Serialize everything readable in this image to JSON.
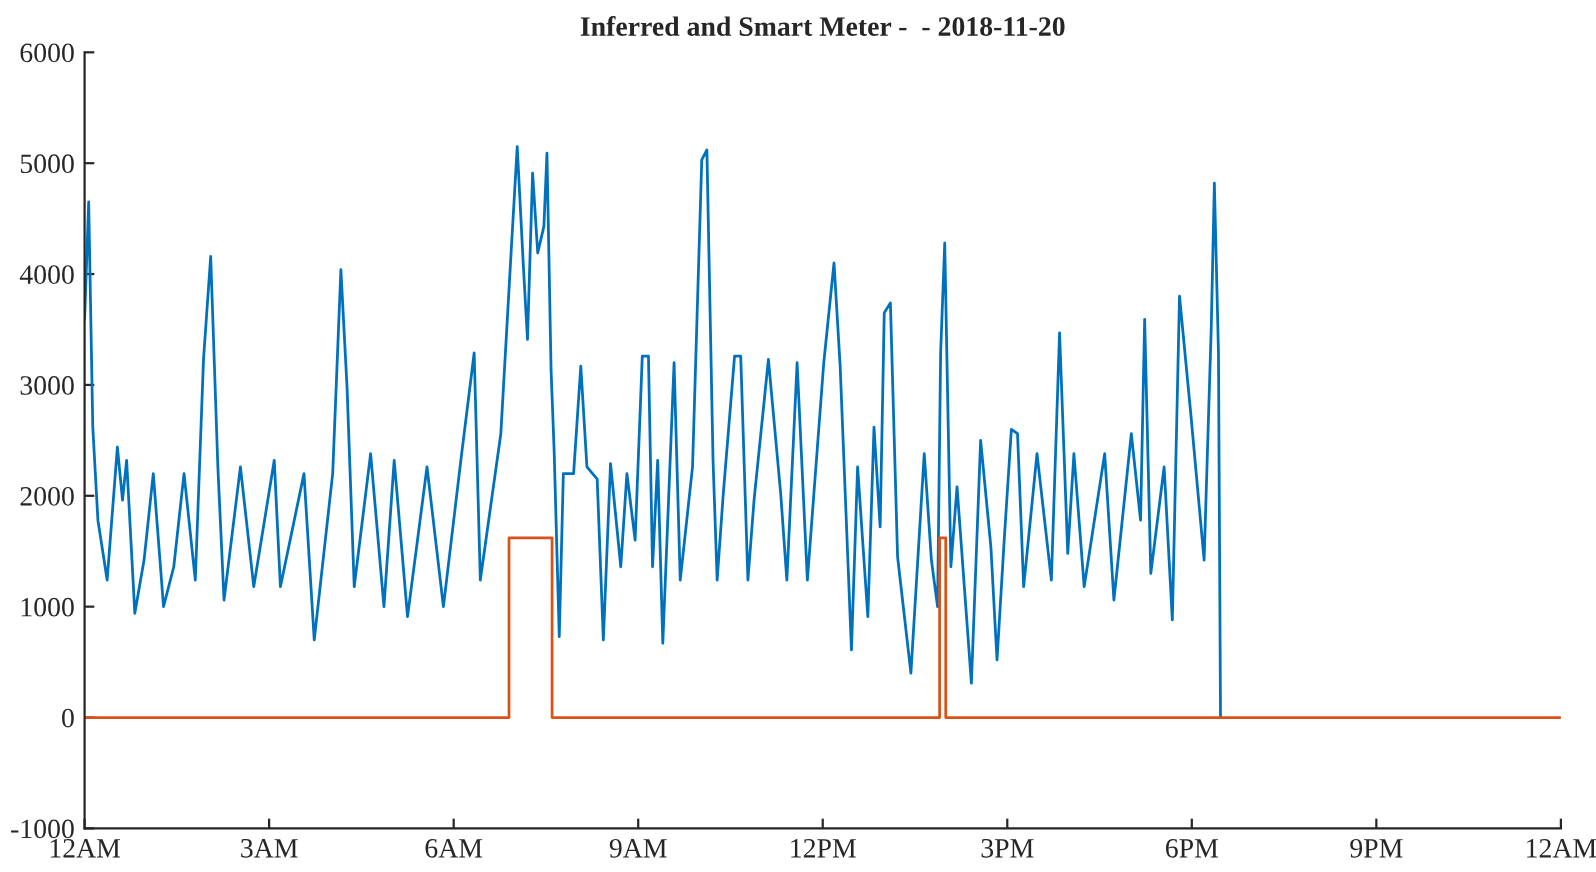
{
  "chart_data": {
    "type": "line",
    "title": "Inferred and Smart Meter -  - 2018-11-20",
    "xlim": [
      "2018-11-20T00:00",
      "2018-11-21T00:00"
    ],
    "xticks": [
      {
        "value": "2018-11-20T00:00",
        "label": "12AM"
      },
      {
        "value": "2018-11-20T03:00",
        "label": "3AM"
      },
      {
        "value": "2018-11-20T06:00",
        "label": "6AM"
      },
      {
        "value": "2018-11-20T09:00",
        "label": "9AM"
      },
      {
        "value": "2018-11-20T12:00",
        "label": "12PM"
      },
      {
        "value": "2018-11-20T15:00",
        "label": "3PM"
      },
      {
        "value": "2018-11-20T18:00",
        "label": "6PM"
      },
      {
        "value": "2018-11-20T21:00",
        "label": "9PM"
      },
      {
        "value": "2018-11-21T00:00",
        "label": "12AM"
      }
    ],
    "ylim": [
      -1000,
      6000
    ],
    "yticks": [
      -1000,
      0,
      1000,
      2000,
      3000,
      4000,
      5000,
      6000
    ],
    "grid": false,
    "series": [
      {
        "color": "#0072bd",
        "x": [
          "2018-11-20T00:00",
          "2018-11-20T00:04",
          "2018-11-20T00:08",
          "2018-11-20T00:13",
          "2018-11-20T00:22",
          "2018-11-20T00:32",
          "2018-11-20T00:37",
          "2018-11-20T00:41",
          "2018-11-20T00:49",
          "2018-11-20T00:58",
          "2018-11-20T01:07",
          "2018-11-20T01:17",
          "2018-11-20T01:27",
          "2018-11-20T01:37",
          "2018-11-20T01:48",
          "2018-11-20T01:56",
          "2018-11-20T02:03",
          "2018-11-20T02:10",
          "2018-11-20T02:16",
          "2018-11-20T02:32",
          "2018-11-20T02:45",
          "2018-11-20T03:05",
          "2018-11-20T03:11",
          "2018-11-20T03:34",
          "2018-11-20T03:44",
          "2018-11-20T04:02",
          "2018-11-20T04:10",
          "2018-11-20T04:16",
          "2018-11-20T04:23",
          "2018-11-20T04:39",
          "2018-11-20T04:52",
          "2018-11-20T05:02",
          "2018-11-20T05:15",
          "2018-11-20T05:34",
          "2018-11-20T05:50",
          "2018-11-20T06:07",
          "2018-11-20T06:20",
          "2018-11-20T06:26",
          "2018-11-20T06:46",
          "2018-11-20T06:56",
          "2018-11-20T07:02",
          "2018-11-20T07:08",
          "2018-11-20T07:12",
          "2018-11-20T07:17",
          "2018-11-20T07:22",
          "2018-11-20T07:28",
          "2018-11-20T07:31",
          "2018-11-20T07:35",
          "2018-11-20T07:38",
          "2018-11-20T07:43",
          "2018-11-20T07:47",
          "2018-11-20T07:57",
          "2018-11-20T08:04",
          "2018-11-20T08:10",
          "2018-11-20T08:20",
          "2018-11-20T08:26",
          "2018-11-20T08:33",
          "2018-11-20T08:43",
          "2018-11-20T08:49",
          "2018-11-20T08:57",
          "2018-11-20T09:04",
          "2018-11-20T09:10",
          "2018-11-20T09:14",
          "2018-11-20T09:19",
          "2018-11-20T09:24",
          "2018-11-20T09:35",
          "2018-11-20T09:41",
          "2018-11-20T09:53",
          "2018-11-20T10:02",
          "2018-11-20T10:07",
          "2018-11-20T10:13",
          "2018-11-20T10:17",
          "2018-11-20T10:23",
          "2018-11-20T10:34",
          "2018-11-20T10:40",
          "2018-11-20T10:47",
          "2018-11-20T10:53",
          "2018-11-20T11:07",
          "2018-11-20T11:19",
          "2018-11-20T11:25",
          "2018-11-20T11:35",
          "2018-11-20T11:45",
          "2018-11-20T12:01",
          "2018-11-20T12:11",
          "2018-11-20T12:17",
          "2018-11-20T12:28",
          "2018-11-20T12:34",
          "2018-11-20T12:44",
          "2018-11-20T12:50",
          "2018-11-20T12:56",
          "2018-11-20T13:00",
          "2018-11-20T13:06",
          "2018-11-20T13:13",
          "2018-11-20T13:26",
          "2018-11-20T13:39",
          "2018-11-20T13:46",
          "2018-11-20T13:52",
          "2018-11-20T13:55",
          "2018-11-20T13:59",
          "2018-11-20T14:05",
          "2018-11-20T14:11",
          "2018-11-20T14:25",
          "2018-11-20T14:34",
          "2018-11-20T14:44",
          "2018-11-20T14:50",
          "2018-11-20T14:57",
          "2018-11-20T15:04",
          "2018-11-20T15:10",
          "2018-11-20T15:16",
          "2018-11-20T15:29",
          "2018-11-20T15:43",
          "2018-11-20T15:51",
          "2018-11-20T15:59",
          "2018-11-20T16:05",
          "2018-11-20T16:15",
          "2018-11-20T16:35",
          "2018-11-20T16:44",
          "2018-11-20T17:01",
          "2018-11-20T17:10",
          "2018-11-20T17:14",
          "2018-11-20T17:20",
          "2018-11-20T17:33",
          "2018-11-20T17:41",
          "2018-11-20T17:48",
          "2018-11-20T17:59",
          "2018-11-20T18:12",
          "2018-11-20T18:19",
          "2018-11-20T18:22",
          "2018-11-20T18:26",
          "2018-11-20T18:28"
        ],
        "values": [
          3590,
          4650,
          2620,
          1780,
          1240,
          2440,
          1960,
          2320,
          940,
          1420,
          2200,
          1000,
          1360,
          2200,
          1240,
          3230,
          4160,
          2260,
          1060,
          2260,
          1180,
          2320,
          1180,
          2200,
          700,
          2200,
          4040,
          2980,
          1180,
          2380,
          1000,
          2320,
          910,
          2260,
          1000,
          2320,
          3290,
          1240,
          2560,
          4190,
          5150,
          4070,
          3410,
          4910,
          4190,
          4430,
          5090,
          3140,
          2410,
          730,
          2200,
          2200,
          3170,
          2260,
          2150,
          700,
          2290,
          1360,
          2200,
          1600,
          3260,
          3260,
          1360,
          2320,
          670,
          3200,
          1240,
          2260,
          5030,
          5120,
          2320,
          1240,
          2020,
          3260,
          3260,
          1240,
          1960,
          3230,
          2020,
          1240,
          3200,
          1240,
          3200,
          4100,
          3170,
          610,
          2260,
          910,
          2620,
          1720,
          3650,
          3740,
          1450,
          400,
          2380,
          1420,
          1000,
          3290,
          4280,
          1360,
          2080,
          310,
          2500,
          1540,
          520,
          1600,
          2600,
          2560,
          1180,
          2380,
          1240,
          3470,
          1480,
          2380,
          1180,
          2380,
          1060,
          2560,
          1780,
          3590,
          1300,
          2260,
          880,
          3800,
          2740,
          1420,
          3530,
          4820,
          3290,
          0
        ]
      },
      {
        "type": "step",
        "color": "#d95319",
        "x": [
          "2018-11-20T00:00",
          "2018-11-20T06:54",
          "2018-11-20T07:36",
          "2018-11-20T13:54",
          "2018-11-20T14:00",
          "2018-11-21T00:00"
        ],
        "values": [
          0,
          1620,
          0,
          1620,
          0,
          0
        ]
      }
    ]
  }
}
